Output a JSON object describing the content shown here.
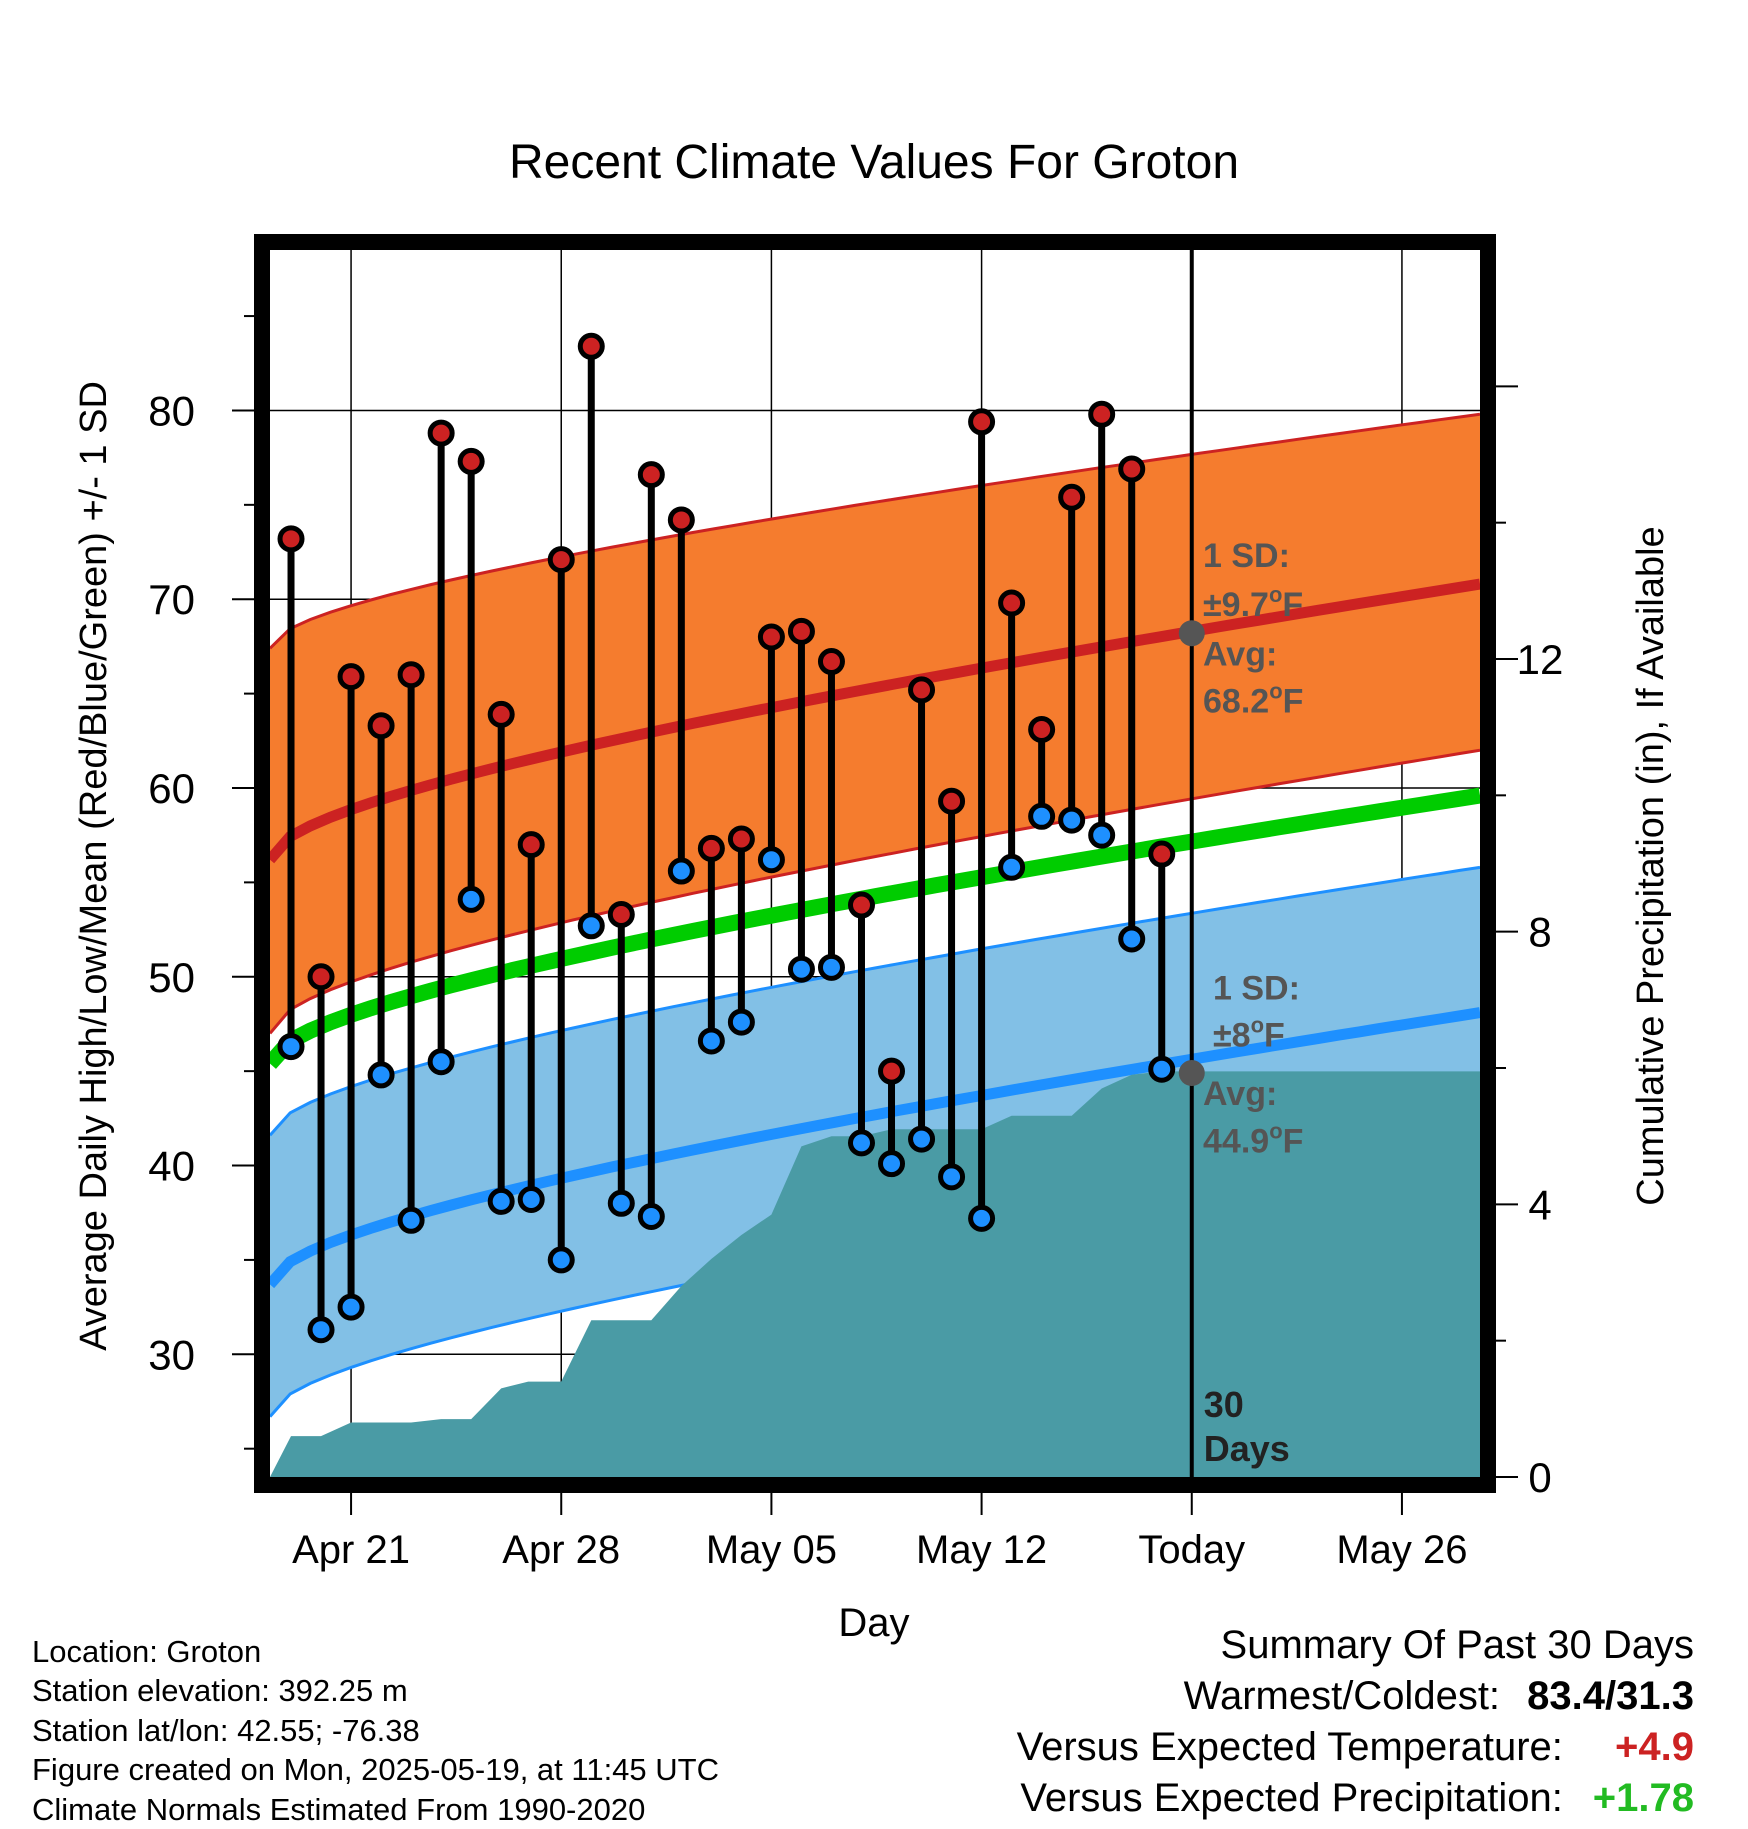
{
  "chart_data": {
    "type": "line",
    "title": "Recent Climate Values For Groton",
    "xlabel": "Day",
    "ylabel": "Average Daily High/Low/Mean (Red/Blue/Green) +/- 1 SD",
    "y2label": "Cumulative Precipitation (in), If Available",
    "ylim": [
      23.5,
      88.5
    ],
    "y2lim": [
      0,
      18
    ],
    "yticks": [
      30,
      40,
      50,
      60,
      70,
      80
    ],
    "y2ticks": [
      0,
      4,
      8,
      12
    ],
    "x_tick_labels": [
      {
        "day": 21,
        "label": "Apr 21"
      },
      {
        "day": 28,
        "label": "Apr 28"
      },
      {
        "day": 35,
        "label": "May 05"
      },
      {
        "day": 42,
        "label": "May 12"
      },
      {
        "day": 49,
        "label": "Today"
      },
      {
        "day": 56,
        "label": "May 26"
      }
    ],
    "x_range": [
      18.3,
      58.6
    ],
    "grid": true,
    "colors": {
      "high": "#cc2222",
      "low": "#1e90ff",
      "mean": "#00cc00",
      "high_band": "#f57c2e",
      "low_band": "#82c0e6",
      "precip": "#4a9ba5",
      "annotation": "#555555"
    },
    "normals": {
      "high_avg": {
        "start": 56.2,
        "end": 70.8
      },
      "high_band": {
        "start": [
          47.0,
          67.4
        ],
        "end": [
          62.0,
          79.8
        ]
      },
      "low_avg": {
        "start": 33.7,
        "end": 48.1
      },
      "low_band": {
        "start": [
          26.7,
          41.6
        ],
        "end": [
          41.0,
          55.8
        ]
      },
      "mean_avg": {
        "start": 45.4,
        "end": 59.6
      }
    },
    "daily": {
      "days": [
        19,
        20,
        21,
        22,
        23,
        24,
        25,
        26,
        27,
        28,
        29,
        30,
        31,
        32,
        33,
        34,
        35,
        36,
        37,
        38,
        39,
        40,
        41,
        42,
        43,
        44,
        45,
        46,
        47,
        48
      ],
      "high": [
        73.2,
        50.0,
        65.9,
        63.3,
        66.0,
        78.8,
        77.3,
        63.9,
        57.0,
        72.1,
        83.4,
        53.3,
        76.6,
        74.2,
        56.8,
        57.3,
        68.0,
        68.3,
        66.7,
        53.8,
        45.0,
        65.2,
        59.3,
        79.4,
        69.8,
        63.1,
        75.4,
        79.8,
        76.9,
        56.5
      ],
      "low": [
        46.3,
        31.3,
        32.5,
        44.8,
        37.1,
        45.5,
        54.1,
        38.1,
        38.2,
        35.0,
        52.7,
        38.0,
        37.3,
        55.6,
        46.6,
        47.6,
        56.2,
        50.4,
        50.5,
        41.2,
        40.1,
        41.4,
        39.4,
        37.2,
        55.8,
        58.5,
        58.3,
        57.5,
        52.0,
        45.1
      ]
    },
    "precip": {
      "days": [
        18.3,
        19,
        20,
        21,
        21.5,
        22,
        23,
        24,
        25,
        26,
        26.9,
        28,
        29,
        30,
        31,
        32,
        33,
        34,
        35,
        36,
        37,
        38,
        39,
        40,
        41,
        42,
        43,
        44,
        45,
        46,
        47,
        48,
        49,
        58.6
      ],
      "values": [
        0,
        0.6,
        0.6,
        0.8,
        0.8,
        0.8,
        0.8,
        0.85,
        0.85,
        1.3,
        1.4,
        1.4,
        2.3,
        2.3,
        2.3,
        2.8,
        3.2,
        3.55,
        3.85,
        4.85,
        5.0,
        5.0,
        5.1,
        5.1,
        5.1,
        5.1,
        5.3,
        5.3,
        5.3,
        5.7,
        5.9,
        5.95,
        5.95,
        5.95
      ]
    },
    "today_annotations": {
      "high_sd_label": "1 SD:",
      "high_sd_value": "±9.7",
      "high_avg_label": "Avg:",
      "high_avg_value": "68.2",
      "low_sd_label": "1 SD:",
      "low_sd_value": "±8",
      "low_avg_label": "Avg:",
      "low_avg_value": "44.9",
      "unit": "F",
      "degree": "o",
      "high_avg": 68.2,
      "low_avg": 44.9,
      "days_number": "30",
      "days_word": "Days"
    }
  },
  "info": {
    "location": "Location: Groton",
    "elevation": "Station elevation: 392.25 m",
    "latlon": "Station lat/lon: 42.55; -76.38",
    "created": "Figure created on Mon, 2025-05-19, at 11:45 UTC",
    "normals": "Climate Normals Estimated From 1990-2020"
  },
  "summary": {
    "title": "Summary Of Past 30 Days",
    "warmest_label": "Warmest/Coldest:",
    "warmest_value": "83.4/31.3",
    "temp_label": "Versus Expected Temperature:",
    "temp_value": "+4.9",
    "temp_color": "#cc2222",
    "precip_label": "Versus Expected Precipitation:",
    "precip_value": "+1.78",
    "precip_color": "#22bb22"
  }
}
